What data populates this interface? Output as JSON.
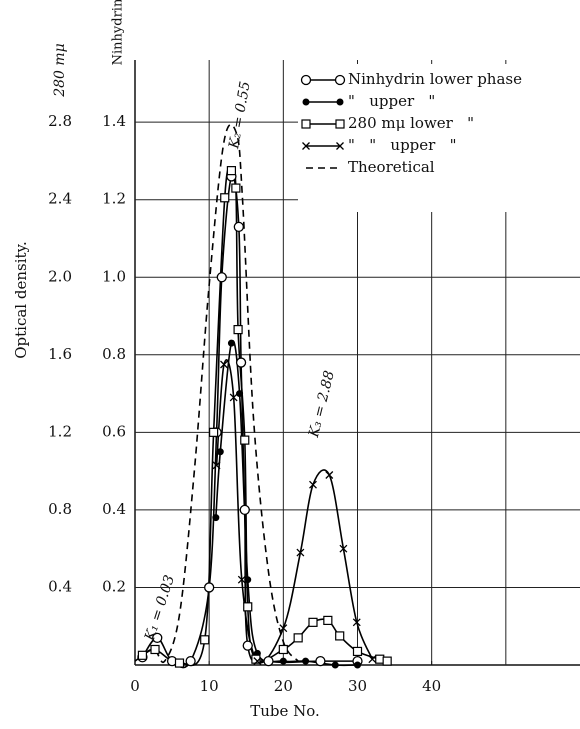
{
  "chart_data": {
    "type": "line",
    "xlabel": "Tube No.",
    "ylabel": "Optical density.",
    "y_axis_title": "Ninhydrin",
    "y2_axis_title": "280 mμ",
    "xlim": [
      0,
      60
    ],
    "xticks": [
      0,
      10,
      20,
      30,
      40
    ],
    "xgrid": [
      10,
      20,
      30,
      40,
      50
    ],
    "ylim": [
      0,
      1.55
    ],
    "yticks": [
      0.2,
      0.4,
      0.6,
      0.8,
      {
        "value": 1,
        "label": "1.0"
      },
      1.2,
      1.4
    ],
    "y2lim": [
      0,
      3.1
    ],
    "y2ticks": [
      0.4,
      0.8,
      1.2,
      1.6,
      {
        "value": 2,
        "label": "2.0"
      },
      2.4,
      2.8
    ],
    "grid": true,
    "legend": "upper right",
    "annotations": [
      "K₁ = 0.03",
      "K₂ = 0.55",
      "K₃ = 2.88"
    ],
    "series": [
      {
        "name": "Ninhydrin lower phase",
        "color": "#000000",
        "marker": "open-circle",
        "dash": false,
        "x": [
          1,
          3,
          5,
          7.5,
          10,
          11,
          11.7,
          13,
          14,
          14.3,
          14.8,
          15.2,
          18,
          25,
          30
        ],
        "values": [
          0.02,
          0.07,
          0.01,
          0.01,
          0.2,
          0.6,
          1.0,
          1.26,
          1.13,
          0.78,
          0.4,
          0.05,
          0.01,
          0.01,
          0.01
        ]
      },
      {
        "name": "\"   upper   \"",
        "color": "#000000",
        "marker": "filled-circle",
        "dash": false,
        "x": [
          10.9,
          11.5,
          13,
          14.1,
          15.2,
          16.5,
          20,
          23,
          27,
          30
        ],
        "values": [
          0.38,
          0.55,
          0.83,
          0.7,
          0.22,
          0.03,
          0.01,
          0.01,
          0,
          0
        ]
      },
      {
        "name": "280 mμ lower   \"",
        "color": "#000000",
        "marker": "open-square",
        "dash": false,
        "axis": "y2",
        "x": [
          1,
          2.7,
          6,
          9.4,
          10.6,
          12.1,
          13,
          13.6,
          13.9,
          14.8,
          15.2,
          16.3,
          20,
          22,
          24,
          26,
          27.6,
          30,
          33,
          34
        ],
        "values": [
          0.05,
          0.08,
          0.01,
          0.13,
          1.2,
          2.41,
          2.55,
          2.46,
          1.73,
          1.16,
          0.3,
          0.03,
          0.08,
          0.14,
          0.22,
          0.23,
          0.15,
          0.07,
          0.03,
          0.02
        ]
      },
      {
        "name": "\"   \"   upper   \"",
        "color": "#000000",
        "marker": "cross",
        "dash": false,
        "axis": "y2",
        "x": [
          11,
          12,
          13.3,
          14.4,
          16.5,
          20,
          22.3,
          24,
          26.2,
          28.1,
          29.9,
          32
        ],
        "values": [
          1.03,
          1.55,
          1.38,
          0.44,
          0.02,
          0.19,
          0.58,
          0.93,
          0.98,
          0.6,
          0.22,
          0.03
        ]
      },
      {
        "name": "Theoretical",
        "color": "#000000",
        "marker": "none",
        "dash": true,
        "x": [
          0,
          2.5,
          4,
          6,
          8,
          10,
          12,
          13.7,
          14.5,
          16,
          18,
          20,
          22
        ],
        "values": [
          0.01,
          0.04,
          0.01,
          0.13,
          0.5,
          0.98,
          1.35,
          1.37,
          1.2,
          0.63,
          0.24,
          0.06,
          0.01
        ]
      }
    ]
  }
}
